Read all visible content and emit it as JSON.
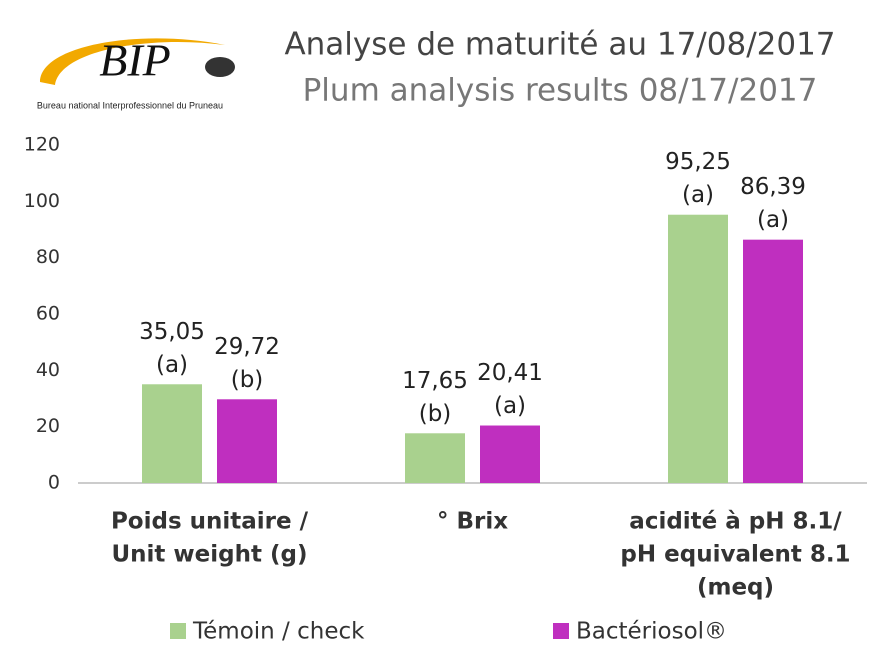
{
  "logo": {
    "text": "BIP",
    "caption": "Bureau national Interprofessionnel du Pruneau"
  },
  "chart_data": {
    "type": "bar",
    "title": "Analyse de maturité au 17/08/2017",
    "subtitle": "Plum analysis results 08/17/2017",
    "categories": [
      [
        "Poids unitaire /",
        "Unit weight (g)"
      ],
      [
        "° Brix"
      ],
      [
        "acidité à pH 8.1/",
        "pH equivalent 8.1",
        "(meq)"
      ]
    ],
    "series": [
      {
        "name": "Témoin / check",
        "color": "#a9d18e",
        "values": [
          35.05,
          17.65,
          95.25
        ],
        "value_labels": [
          "35,05",
          "17,65",
          "95,25"
        ],
        "letters": [
          "(a)",
          "(b)",
          "(a)"
        ]
      },
      {
        "name": "Bactériosol®",
        "color": "#bf2fbf",
        "values": [
          29.72,
          20.41,
          86.39
        ],
        "value_labels": [
          "29,72",
          "20,41",
          "86,39"
        ],
        "letters": [
          "(b)",
          "(a)",
          "(a)"
        ]
      }
    ],
    "ylim": [
      0,
      120
    ],
    "yticks": [
      0,
      20,
      40,
      60,
      80,
      100,
      120
    ],
    "grid": false,
    "legend": "bottom"
  }
}
